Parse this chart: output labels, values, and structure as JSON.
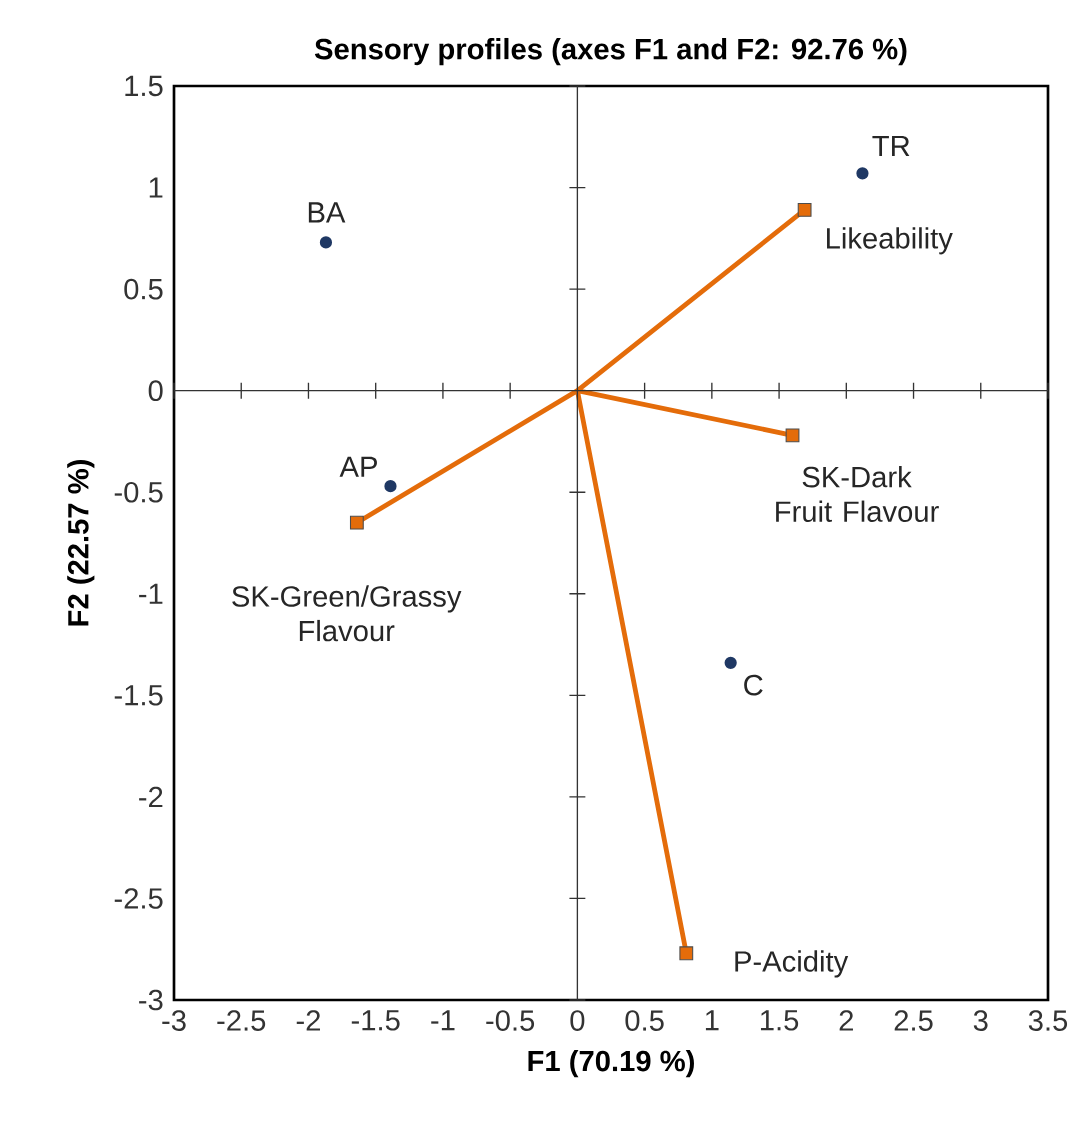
{
  "chart_data": {
    "type": "scatter",
    "title": "Sensory profiles (axes F1 and F2: 92.76 %)",
    "xlabel": "F1 (70.19 %)",
    "ylabel": "F2 (22.57 %)",
    "xlim": [
      -3,
      3.5
    ],
    "ylim": [
      -3,
      1.5
    ],
    "xticks": [
      -3,
      -2.5,
      -2,
      -1.5,
      -1,
      -0.5,
      0,
      0.5,
      1,
      1.5,
      2,
      2.5,
      3,
      3.5
    ],
    "yticks": [
      -3,
      -2.5,
      -2,
      -1.5,
      -1,
      -0.5,
      0,
      0.5,
      1,
      1.5
    ],
    "series": [
      {
        "color": "#1f3864",
        "marker": "circle",
        "x": [
          2.12,
          -1.87,
          -1.39,
          1.14
        ],
        "values": [
          1.07,
          0.73,
          -0.47,
          -1.34
        ]
      },
      {
        "type": "line",
        "color": "#e46c0a",
        "marker": "none",
        "x": [
          1.69,
          0,
          1.6,
          0,
          -1.64,
          0,
          0.81
        ],
        "values": [
          0.89,
          0,
          -0.22,
          0,
          -0.65,
          0,
          -2.77
        ]
      },
      {
        "color": "#e46c0a",
        "marker": "square",
        "x": [
          1.69,
          1.6,
          -1.64,
          0.81
        ],
        "values": [
          0.89,
          -0.22,
          -0.65,
          -2.77
        ]
      }
    ],
    "annotations": [
      {
        "text": "TR",
        "x": 2.12,
        "y": 1.07
      },
      {
        "text": "BA",
        "x": -1.87,
        "y": 0.73
      },
      {
        "text": "AP",
        "x": -1.39,
        "y": -0.47
      },
      {
        "text": "C",
        "x": 1.14,
        "y": -1.34
      },
      {
        "text": "Likeability",
        "x": 1.69,
        "y": 0.89
      },
      {
        "text": "SK-Dark Fruit Flavour",
        "x": 1.6,
        "y": -0.22
      },
      {
        "text": "SK-Green/Grassy Flavour",
        "x": -1.64,
        "y": -0.65
      },
      {
        "text": "P-Acidity",
        "x": 0.81,
        "y": -2.77
      }
    ]
  }
}
